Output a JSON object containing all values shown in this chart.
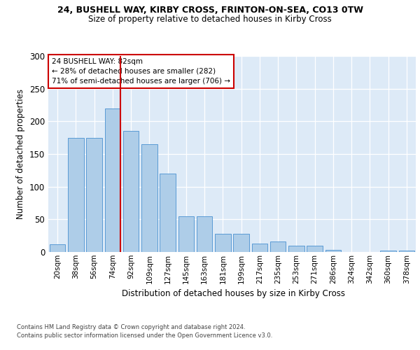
{
  "title1": "24, BUSHELL WAY, KIRBY CROSS, FRINTON-ON-SEA, CO13 0TW",
  "title2": "Size of property relative to detached houses in Kirby Cross",
  "xlabel": "Distribution of detached houses by size in Kirby Cross",
  "ylabel": "Number of detached properties",
  "categories": [
    "20sqm",
    "38sqm",
    "56sqm",
    "74sqm",
    "92sqm",
    "109sqm",
    "127sqm",
    "145sqm",
    "163sqm",
    "181sqm",
    "199sqm",
    "217sqm",
    "235sqm",
    "253sqm",
    "271sqm",
    "286sqm",
    "324sqm",
    "342sqm",
    "360sqm",
    "378sqm"
  ],
  "values": [
    12,
    175,
    175,
    220,
    185,
    165,
    120,
    55,
    55,
    28,
    28,
    13,
    16,
    10,
    10,
    3,
    0,
    0,
    2,
    2
  ],
  "bar_color": "#aecde8",
  "bar_edge_color": "#5a9bd5",
  "vline_x_index": 3.43,
  "vline_color": "#cc0000",
  "annotation_text": "24 BUSHELL WAY: 82sqm\n← 28% of detached houses are smaller (282)\n71% of semi-detached houses are larger (706) →",
  "annotation_box_facecolor": "#ffffff",
  "annotation_box_edgecolor": "#cc0000",
  "ylim": [
    0,
    300
  ],
  "yticks": [
    0,
    50,
    100,
    150,
    200,
    250,
    300
  ],
  "bg_color": "#ddeaf7",
  "footer1": "Contains HM Land Registry data © Crown copyright and database right 2024.",
  "footer2": "Contains public sector information licensed under the Open Government Licence v3.0."
}
